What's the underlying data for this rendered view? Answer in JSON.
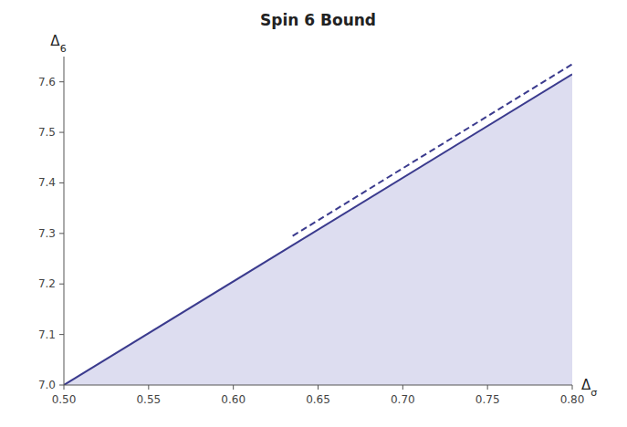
{
  "chart_data": {
    "type": "line",
    "title": "Spin 6 Bound",
    "x_label": "Δσ",
    "y_label": "Δ6",
    "xlim": [
      0.5,
      0.8
    ],
    "ylim": [
      7.0,
      7.65
    ],
    "xticks": [
      {
        "value": 0.5,
        "label": "0.50"
      },
      0.55,
      {
        "value": 0.6,
        "label": "0.60"
      },
      0.65,
      {
        "value": 0.7,
        "label": "0.70"
      },
      0.75,
      {
        "value": 0.8,
        "label": "0.80"
      }
    ],
    "yticks": [
      {
        "value": 7.0,
        "label": "7.0"
      },
      7.1,
      7.2,
      7.3,
      7.4,
      7.5,
      7.6
    ],
    "grid": false,
    "series": [
      {
        "type": "area",
        "color": "#DDDDF0",
        "x": [
          0.5,
          0.8
        ],
        "values": [
          7.0,
          7.615
        ]
      },
      {
        "type": "line",
        "line_style": "solid",
        "color": "#3B3B8E",
        "x": [
          0.5,
          0.8
        ],
        "values": [
          7.0,
          7.615
        ]
      },
      {
        "type": "line",
        "line_style": "dashed",
        "color": "#3B3B8E",
        "x": [
          0.635,
          0.8
        ],
        "values": [
          7.295,
          7.635
        ]
      }
    ]
  }
}
